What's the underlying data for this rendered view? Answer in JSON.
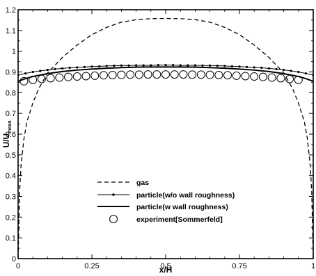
{
  "chart_data": {
    "type": "line",
    "xlabel": "x/H",
    "ylabel_main": "U/U",
    "ylabel_sub": "mean",
    "xlim": [
      0,
      1
    ],
    "ylim": [
      0,
      1.2
    ],
    "x_ticks": [
      0,
      0.25,
      0.5,
      0.75,
      1
    ],
    "x_tick_labels": [
      "0",
      "0.25",
      "0.5",
      "0.75",
      "1"
    ],
    "y_ticks": [
      0,
      0.1,
      0.2,
      0.3,
      0.4,
      0.5,
      0.6,
      0.7,
      0.8,
      0.9,
      1,
      1.1,
      1.2
    ],
    "y_tick_labels": [
      "0",
      "0.1",
      "0.2",
      "0.3",
      "0.4",
      "0.5",
      "0.6",
      "0.7",
      "0.8",
      "0.9",
      "1",
      "1.1",
      "1.2"
    ],
    "legend_position": "center",
    "grid": false,
    "series": [
      {
        "name": "gas",
        "style": "dashed",
        "color": "#000000",
        "x": [
          0.0,
          0.005,
          0.01,
          0.02,
          0.03,
          0.05,
          0.07,
          0.1,
          0.15,
          0.2,
          0.25,
          0.3,
          0.35,
          0.4,
          0.45,
          0.5,
          0.55,
          0.6,
          0.65,
          0.7,
          0.75,
          0.8,
          0.85,
          0.9,
          0.93,
          0.95,
          0.97,
          0.98,
          0.99,
          0.995,
          1.0
        ],
        "y": [
          0.0,
          0.32,
          0.45,
          0.58,
          0.66,
          0.75,
          0.82,
          0.895,
          0.97,
          1.03,
          1.08,
          1.115,
          1.14,
          1.152,
          1.157,
          1.158,
          1.157,
          1.152,
          1.14,
          1.115,
          1.08,
          1.03,
          0.97,
          0.895,
          0.82,
          0.75,
          0.66,
          0.58,
          0.45,
          0.32,
          0.0
        ]
      },
      {
        "name": "particle(w/o wall roughness)",
        "style": "line-dots",
        "color": "#000000",
        "x": [
          0.0,
          0.025,
          0.05,
          0.075,
          0.1,
          0.125,
          0.15,
          0.175,
          0.2,
          0.225,
          0.25,
          0.275,
          0.3,
          0.325,
          0.35,
          0.375,
          0.4,
          0.425,
          0.45,
          0.475,
          0.5,
          0.525,
          0.55,
          0.575,
          0.6,
          0.625,
          0.65,
          0.675,
          0.7,
          0.725,
          0.75,
          0.775,
          0.8,
          0.825,
          0.85,
          0.875,
          0.9,
          0.925,
          0.95,
          0.975,
          1.0
        ],
        "y": [
          0.885,
          0.893,
          0.9,
          0.905,
          0.91,
          0.914,
          0.917,
          0.92,
          0.922,
          0.924,
          0.926,
          0.927,
          0.929,
          0.93,
          0.931,
          0.931,
          0.932,
          0.932,
          0.932,
          0.933,
          0.933,
          0.933,
          0.932,
          0.932,
          0.932,
          0.931,
          0.931,
          0.93,
          0.929,
          0.927,
          0.926,
          0.924,
          0.922,
          0.92,
          0.917,
          0.914,
          0.91,
          0.905,
          0.9,
          0.893,
          0.885
        ]
      },
      {
        "name": "particle(w wall roughness)",
        "style": "solid",
        "color": "#000000",
        "x": [
          0.0,
          0.025,
          0.05,
          0.1,
          0.15,
          0.2,
          0.25,
          0.3,
          0.35,
          0.4,
          0.45,
          0.5,
          0.55,
          0.6,
          0.65,
          0.7,
          0.75,
          0.8,
          0.85,
          0.9,
          0.95,
          0.975,
          1.0
        ],
        "y": [
          0.855,
          0.868,
          0.878,
          0.892,
          0.902,
          0.909,
          0.914,
          0.918,
          0.921,
          0.923,
          0.924,
          0.924,
          0.924,
          0.923,
          0.921,
          0.918,
          0.914,
          0.909,
          0.902,
          0.892,
          0.878,
          0.868,
          0.855
        ]
      },
      {
        "name": "experiment[Sommerfeld]",
        "style": "open-circles",
        "color": "#000000",
        "x": [
          0.02,
          0.05,
          0.08,
          0.11,
          0.14,
          0.17,
          0.2,
          0.23,
          0.26,
          0.29,
          0.32,
          0.35,
          0.38,
          0.41,
          0.44,
          0.47,
          0.5,
          0.53,
          0.56,
          0.59,
          0.62,
          0.65,
          0.68,
          0.71,
          0.74,
          0.77,
          0.8,
          0.83,
          0.86,
          0.89,
          0.92,
          0.95
        ],
        "y": [
          0.855,
          0.862,
          0.866,
          0.87,
          0.873,
          0.876,
          0.878,
          0.88,
          0.882,
          0.884,
          0.885,
          0.886,
          0.887,
          0.887,
          0.888,
          0.888,
          0.888,
          0.888,
          0.888,
          0.887,
          0.887,
          0.886,
          0.885,
          0.884,
          0.882,
          0.88,
          0.878,
          0.876,
          0.873,
          0.87,
          0.866,
          0.862
        ]
      }
    ]
  }
}
